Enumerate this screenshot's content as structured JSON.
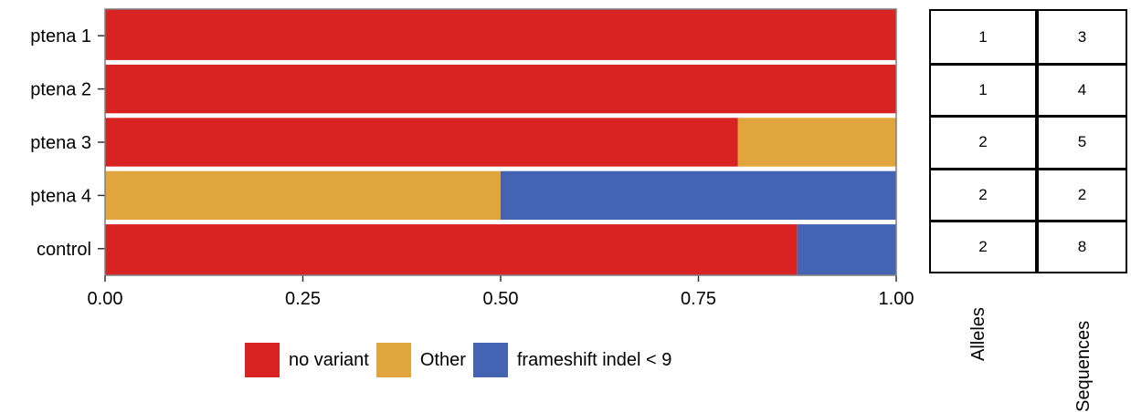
{
  "chart_data": {
    "type": "bar",
    "orientation": "horizontal",
    "stacked": true,
    "categories": [
      "ptena 1",
      "ptena 2",
      "ptena 3",
      "ptena 4",
      "control"
    ],
    "series": [
      {
        "name": "no variant",
        "color": "#d92323",
        "values": [
          1.0,
          1.0,
          0.8,
          0.0,
          0.875
        ]
      },
      {
        "name": "Other",
        "color": "#e0a53c",
        "values": [
          0.0,
          0.0,
          0.2,
          0.5,
          0.0
        ]
      },
      {
        "name": "frameshift indel < 9",
        "color": "#4463b2",
        "values": [
          0.0,
          0.0,
          0.0,
          0.5,
          0.125
        ]
      }
    ],
    "xlim": [
      0,
      1
    ],
    "xticks": [
      "0.00",
      "0.25",
      "0.50",
      "0.75",
      "1.00"
    ],
    "xtick_values": [
      0,
      0.25,
      0.5,
      0.75,
      1.0
    ],
    "xlabel": "",
    "ylabel": "",
    "grid": false,
    "legend_position": "bottom"
  },
  "table": {
    "columns": [
      "Alleles",
      "Sequences"
    ],
    "rows": [
      {
        "category": "ptena 1",
        "alleles": "1",
        "sequences": "3"
      },
      {
        "category": "ptena 2",
        "alleles": "1",
        "sequences": "4"
      },
      {
        "category": "ptena 3",
        "alleles": "2",
        "sequences": "5"
      },
      {
        "category": "ptena 4",
        "alleles": "2",
        "sequences": "2"
      },
      {
        "category": "control",
        "alleles": "2",
        "sequences": "8"
      }
    ]
  },
  "colors": {
    "panel_border": "#7f7f7f",
    "separator": "#ffffff"
  }
}
